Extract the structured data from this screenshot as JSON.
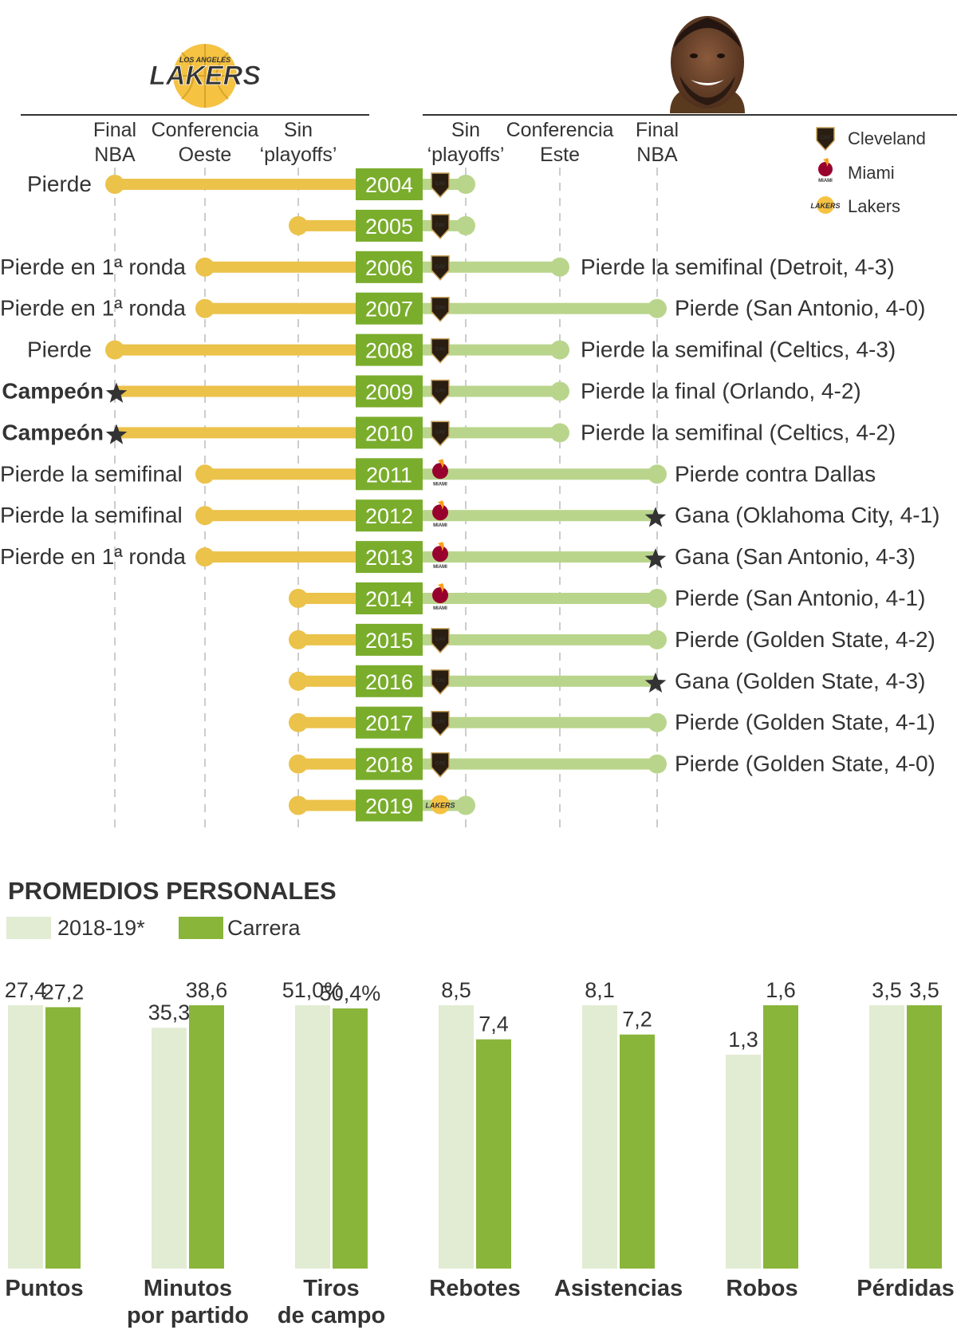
{
  "colors": {
    "lakers_yellow": "#ebc24a",
    "lebron_green": "#b9d58c",
    "year_box": "#7aad2c",
    "bar_light": "#e1ecd3",
    "bar_dark": "#89b53a",
    "text": "#333333",
    "grid": "#bbbbbb"
  },
  "header": {
    "lakers_logo_text": "LAKERS",
    "lakers_logo_subtext": "LOS ANGELES"
  },
  "chart_data": [
    {
      "type": "timeline",
      "title": "",
      "left_axis": {
        "team": "Lakers",
        "categories": [
          "Final NBA",
          "Conferencia Oeste",
          "Sin 'playoffs'"
        ],
        "labels": [
          {
            "line1": "Final",
            "line2": "NBA"
          },
          {
            "line1": "Conferencia",
            "line2": "Oeste"
          },
          {
            "line1": "Sin",
            "line2": "‘playoffs’"
          }
        ]
      },
      "right_axis": {
        "player": "LeBron James",
        "categories": [
          "Sin 'playoffs'",
          "Conferencia Este",
          "Final NBA"
        ],
        "labels": [
          {
            "line1": "Sin",
            "line2": "‘playoffs’"
          },
          {
            "line1": "Conferencia",
            "line2": "Este"
          },
          {
            "line1": "Final",
            "line2": "NBA"
          }
        ]
      },
      "legend": [
        {
          "team": "cleveland",
          "label": "Cleveland"
        },
        {
          "team": "miami",
          "label": "Miami"
        },
        {
          "team": "lakers",
          "label": "Lakers"
        }
      ],
      "rows": [
        {
          "year": "2004",
          "lakers_level": 0,
          "lakers_label": "Pierde",
          "lakers_bold": false,
          "lakers_star": false,
          "team": "cleveland",
          "lebron_level": 0,
          "lebron_label": "",
          "lebron_star": false
        },
        {
          "year": "2005",
          "lakers_level": 2,
          "lakers_label": "",
          "lakers_bold": false,
          "lakers_star": false,
          "team": "cleveland",
          "lebron_level": 0,
          "lebron_label": "",
          "lebron_star": false
        },
        {
          "year": "2006",
          "lakers_level": 1,
          "lakers_label": "Pierde en 1ª ronda",
          "lakers_bold": false,
          "lakers_star": false,
          "team": "cleveland",
          "lebron_level": 1,
          "lebron_label": "Pierde la semifinal (Detroit, 4-3)",
          "lebron_star": false
        },
        {
          "year": "2007",
          "lakers_level": 1,
          "lakers_label": "Pierde en 1ª ronda",
          "lakers_bold": false,
          "lakers_star": false,
          "team": "cleveland",
          "lebron_level": 2,
          "lebron_label": "Pierde (San Antonio, 4-0)",
          "lebron_star": false
        },
        {
          "year": "2008",
          "lakers_level": 0,
          "lakers_label": "Pierde",
          "lakers_bold": false,
          "lakers_star": false,
          "team": "cleveland",
          "lebron_level": 1,
          "lebron_label": "Pierde la semifinal  (Celtics, 4-3)",
          "lebron_star": false
        },
        {
          "year": "2009",
          "lakers_level": 0,
          "lakers_label": "Campeón",
          "lakers_bold": true,
          "lakers_star": true,
          "team": "cleveland",
          "lebron_level": 1,
          "lebron_label": "Pierde la final (Orlando, 4-2)",
          "lebron_star": false
        },
        {
          "year": "2010",
          "lakers_level": 0,
          "lakers_label": "Campeón",
          "lakers_bold": true,
          "lakers_star": true,
          "team": "cleveland",
          "lebron_level": 1,
          "lebron_label": "Pierde la semifinal (Celtics, 4-2)",
          "lebron_star": false
        },
        {
          "year": "2011",
          "lakers_level": 1,
          "lakers_label": "Pierde la semifinal",
          "lakers_bold": false,
          "lakers_star": false,
          "team": "miami",
          "lebron_level": 2,
          "lebron_label": "Pierde contra Dallas",
          "lebron_star": false
        },
        {
          "year": "2012",
          "lakers_level": 1,
          "lakers_label": "Pierde la semifinal",
          "lakers_bold": false,
          "lakers_star": false,
          "team": "miami",
          "lebron_level": 2,
          "lebron_label": "Gana (Oklahoma City, 4-1)",
          "lebron_star": true
        },
        {
          "year": "2013",
          "lakers_level": 1,
          "lakers_label": "Pierde en 1ª ronda",
          "lakers_bold": false,
          "lakers_star": false,
          "team": "miami",
          "lebron_level": 2,
          "lebron_label": "Gana (San Antonio, 4-3)",
          "lebron_star": true
        },
        {
          "year": "2014",
          "lakers_level": 2,
          "lakers_label": "",
          "lakers_bold": false,
          "lakers_star": false,
          "team": "miami",
          "lebron_level": 2,
          "lebron_label": "Pierde (San Antonio, 4-1)",
          "lebron_star": false
        },
        {
          "year": "2015",
          "lakers_level": 2,
          "lakers_label": "",
          "lakers_bold": false,
          "lakers_star": false,
          "team": "cleveland",
          "lebron_level": 2,
          "lebron_label": "Pierde (Golden State, 4-2)",
          "lebron_star": false
        },
        {
          "year": "2016",
          "lakers_level": 2,
          "lakers_label": "",
          "lakers_bold": false,
          "lakers_star": false,
          "team": "cleveland",
          "lebron_level": 2,
          "lebron_label": "Gana (Golden State, 4-3)",
          "lebron_star": true
        },
        {
          "year": "2017",
          "lakers_level": 2,
          "lakers_label": "",
          "lakers_bold": false,
          "lakers_star": false,
          "team": "cleveland",
          "lebron_level": 2,
          "lebron_label": "Pierde (Golden State, 4-1)",
          "lebron_star": false
        },
        {
          "year": "2018",
          "lakers_level": 2,
          "lakers_label": "",
          "lakers_bold": false,
          "lakers_star": false,
          "team": "cleveland",
          "lebron_level": 2,
          "lebron_label": "Pierde (Golden State, 4-0)",
          "lebron_star": false
        },
        {
          "year": "2019",
          "lakers_level": 2,
          "lakers_label": "",
          "lakers_bold": false,
          "lakers_star": false,
          "team": "lakers",
          "lebron_level": 0,
          "lebron_label": "",
          "lebron_star": false
        }
      ]
    },
    {
      "type": "bar",
      "title": "PROMEDIOS PERSONALES",
      "series": [
        {
          "name": "2018-19*",
          "values": [
            27.4,
            35.3,
            51.0,
            8.5,
            8.1,
            1.3,
            3.5
          ],
          "labels": [
            "27,4",
            "35,3",
            "51,0%",
            "8,5",
            "8,1",
            "1,3",
            "3,5"
          ]
        },
        {
          "name": "Carrera",
          "values": [
            27.2,
            38.6,
            50.4,
            7.4,
            7.2,
            1.6,
            3.5
          ],
          "labels": [
            "27,2",
            "38,6",
            "50,4%",
            "7,4",
            "7,2",
            "1,6",
            "3,5"
          ]
        }
      ],
      "categories": [
        {
          "line1": "Puntos",
          "line2": ""
        },
        {
          "line1": "Minutos",
          "line2": "por partido"
        },
        {
          "line1": "Tiros",
          "line2": "de campo"
        },
        {
          "line1": "Rebotes",
          "line2": ""
        },
        {
          "line1": "Asistencias",
          "line2": ""
        },
        {
          "line1": "Robos",
          "line2": ""
        },
        {
          "line1": "Pérdidas",
          "line2": ""
        }
      ],
      "scale_note": "each category scaled independently; larger of the pair ≈ full height"
    }
  ]
}
